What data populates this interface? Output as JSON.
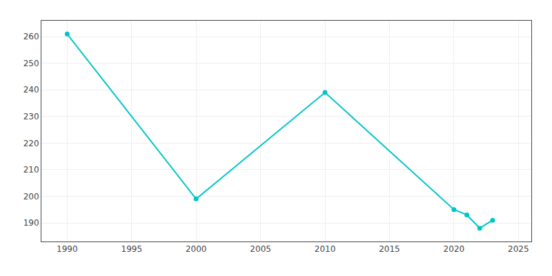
{
  "chart_data": {
    "type": "line",
    "x": [
      1990,
      2000,
      2010,
      2020,
      2021,
      2022,
      2023
    ],
    "values": [
      261,
      199,
      239,
      195,
      193,
      188,
      191
    ],
    "color": "#00C5C8",
    "marker": "circle",
    "xlim": [
      1988,
      2026
    ],
    "ylim": [
      183,
      266
    ],
    "xticks": [
      1990,
      1995,
      2000,
      2005,
      2010,
      2015,
      2020,
      2025
    ],
    "yticks": [
      190,
      200,
      210,
      220,
      230,
      240,
      250,
      260
    ],
    "grid": true
  }
}
